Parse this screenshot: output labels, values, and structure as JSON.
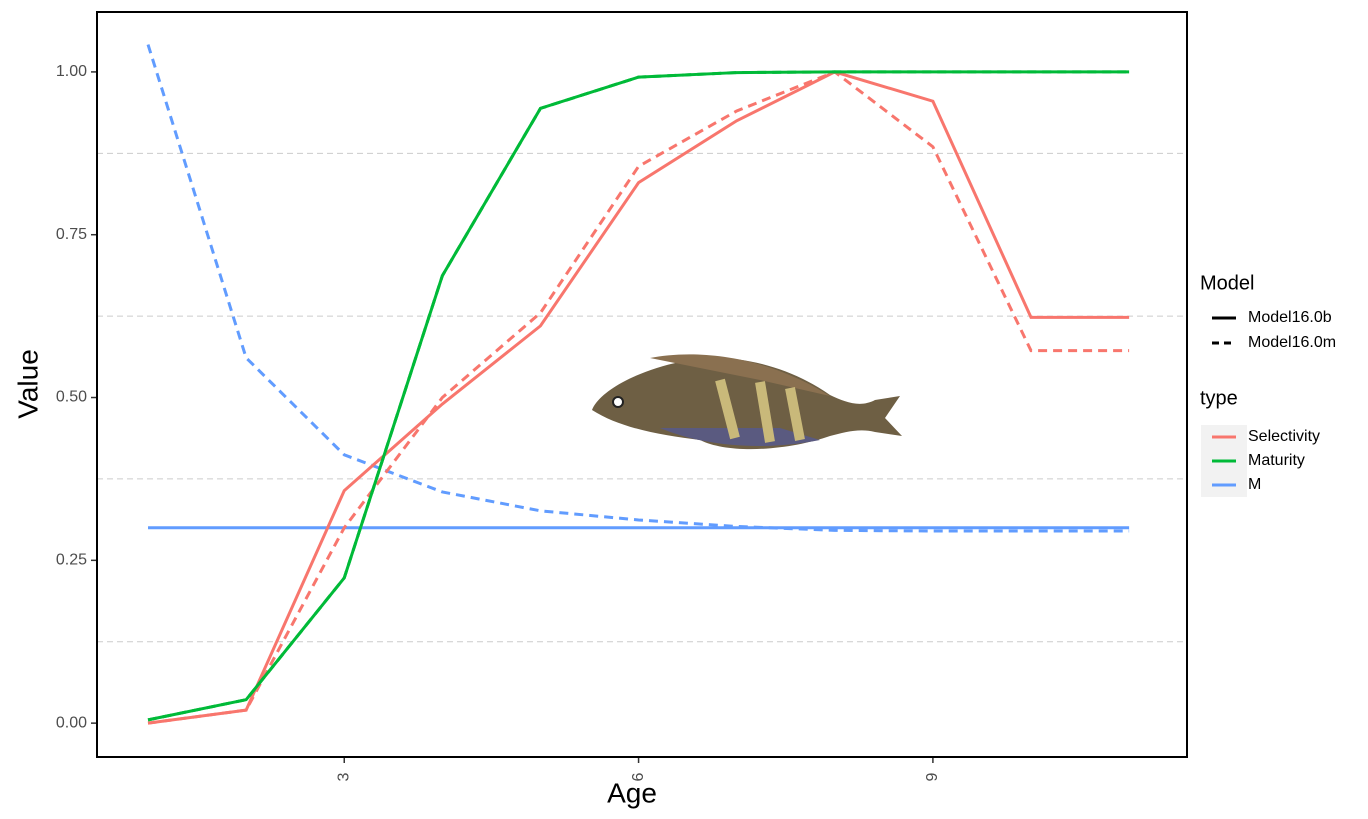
{
  "chart_data": {
    "type": "line",
    "x_label": "Age",
    "y_label": "Value",
    "x": [
      1,
      2,
      3,
      4,
      5,
      6,
      7,
      8,
      9,
      10,
      11
    ],
    "xlim": [
      0.48,
      11.59
    ],
    "xticks": [
      3,
      6,
      9
    ],
    "ylim": [
      -0.052,
      1.092
    ],
    "yticks": [
      {
        "value": 0,
        "label": "0.00"
      },
      {
        "value": 0.25,
        "label": "0.25"
      },
      {
        "value": 0.5,
        "label": "0.50"
      },
      {
        "value": 0.75,
        "label": "0.75"
      },
      {
        "value": 1,
        "label": "1.00"
      }
    ],
    "minor_grid_y": [
      0.125,
      0.375,
      0.625,
      0.875
    ],
    "linetype_legend": {
      "title": "Model",
      "items": [
        {
          "name": "Model16.0b",
          "dash": "solid"
        },
        {
          "name": "Model16.0m",
          "dash": "dashed"
        }
      ]
    },
    "color_legend": {
      "title": "type",
      "items": [
        {
          "name": "Selectivity",
          "color": "#F8766D"
        },
        {
          "name": "Maturity",
          "color": "#00BA38"
        },
        {
          "name": "M",
          "color": "#619CFF"
        }
      ]
    },
    "series": [
      {
        "color": "#619CFF",
        "dash": "solid",
        "values": [
          0.3,
          0.3,
          0.3,
          0.3,
          0.3,
          0.3,
          0.3,
          0.3,
          0.3,
          0.3,
          0.3
        ]
      },
      {
        "color": "#619CFF",
        "dash": "dashed",
        "values": [
          1.042,
          0.561,
          0.412,
          0.355,
          0.326,
          0.312,
          0.302,
          0.296,
          0.295,
          0.295,
          0.295
        ]
      },
      {
        "color": "#F8766D",
        "dash": "solid",
        "values": [
          0.0,
          0.02,
          0.357,
          0.49,
          0.61,
          0.83,
          0.925,
          1.0,
          0.955,
          0.623,
          0.623
        ]
      },
      {
        "color": "#F8766D",
        "dash": "dashed",
        "values": [
          0.0,
          0.02,
          0.3,
          0.5,
          0.63,
          0.855,
          0.94,
          1.0,
          0.885,
          0.572,
          0.572
        ]
      },
      {
        "color": "#00BA38",
        "dash": "dashed",
        "values": [
          0.005,
          0.036,
          0.223,
          0.687,
          0.944,
          0.992,
          0.999,
          1.0,
          1.0,
          1.0,
          1.0
        ]
      },
      {
        "color": "#00BA38",
        "dash": "solid",
        "values": [
          0.005,
          0.036,
          0.223,
          0.687,
          0.944,
          0.992,
          0.999,
          1.0,
          1.0,
          1.0,
          1.0
        ]
      }
    ]
  }
}
